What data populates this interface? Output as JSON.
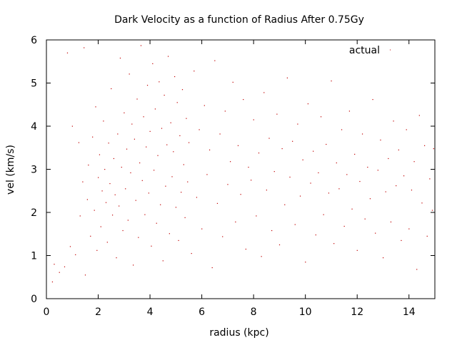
{
  "chart_data": {
    "type": "scatter",
    "title": "Dark Velocity as a function of Radius After 0.75Gy",
    "xlabel": "radius (kpc)",
    "ylabel": "vel (km/s)",
    "xlim": [
      0,
      15
    ],
    "ylim": [
      0,
      6
    ],
    "xticks": [
      "0",
      "2",
      "4",
      "6",
      "8",
      "10",
      "12",
      "14"
    ],
    "yticks": [
      "0",
      "1",
      "2",
      "3",
      "4",
      "5",
      "6"
    ],
    "grid": false,
    "legend_position": "top-right",
    "colors": {
      "series": "#c00000",
      "axis": "#000000"
    },
    "series": [
      {
        "name": "actual",
        "points": [
          [
            0.23,
            0.39
          ],
          [
            0.3,
            0.8
          ],
          [
            0.5,
            0.61
          ],
          [
            0.7,
            0.74
          ],
          [
            0.81,
            5.7
          ],
          [
            0.92,
            1.21
          ],
          [
            1.0,
            4.0
          ],
          [
            1.12,
            1.02
          ],
          [
            1.25,
            3.62
          ],
          [
            1.3,
            1.92
          ],
          [
            1.4,
            2.71
          ],
          [
            1.45,
            5.82
          ],
          [
            1.5,
            0.55
          ],
          [
            1.58,
            2.3
          ],
          [
            1.62,
            3.1
          ],
          [
            1.7,
            1.45
          ],
          [
            1.78,
            3.75
          ],
          [
            1.85,
            2.05
          ],
          [
            1.9,
            4.45
          ],
          [
            1.95,
            1.12
          ],
          [
            2.0,
            2.81
          ],
          [
            2.05,
            3.34
          ],
          [
            2.1,
            1.67
          ],
          [
            2.15,
            2.5
          ],
          [
            2.2,
            4.12
          ],
          [
            2.25,
            3.0
          ],
          [
            2.3,
            2.23
          ],
          [
            2.35,
            1.31
          ],
          [
            2.4,
            3.61
          ],
          [
            2.45,
            2.67
          ],
          [
            2.5,
            4.87
          ],
          [
            2.55,
            1.94
          ],
          [
            2.6,
            3.25
          ],
          [
            2.65,
            2.41
          ],
          [
            2.7,
            0.95
          ],
          [
            2.75,
            3.82
          ],
          [
            2.8,
            2.15
          ],
          [
            2.85,
            5.58
          ],
          [
            2.9,
            3.05
          ],
          [
            2.95,
            1.58
          ],
          [
            3.0,
            4.31
          ],
          [
            3.05,
            2.55
          ],
          [
            3.1,
            3.47
          ],
          [
            3.15,
            1.82
          ],
          [
            3.2,
            5.21
          ],
          [
            3.25,
            2.92
          ],
          [
            3.3,
            4.05
          ],
          [
            3.35,
            0.78
          ],
          [
            3.4,
            3.7
          ],
          [
            3.45,
            2.28
          ],
          [
            3.5,
            4.63
          ],
          [
            3.55,
            1.42
          ],
          [
            3.6,
            3.15
          ],
          [
            3.65,
            5.87
          ],
          [
            3.7,
            2.74
          ],
          [
            3.75,
            4.22
          ],
          [
            3.8,
            1.95
          ],
          [
            3.85,
            3.52
          ],
          [
            3.9,
            4.95
          ],
          [
            3.95,
            2.45
          ],
          [
            4.0,
            3.88
          ],
          [
            4.05,
            1.22
          ],
          [
            4.1,
            5.45
          ],
          [
            4.15,
            2.98
          ],
          [
            4.2,
            4.4
          ],
          [
            4.25,
            1.75
          ],
          [
            4.3,
            3.32
          ],
          [
            4.35,
            5.03
          ],
          [
            4.4,
            2.18
          ],
          [
            4.45,
            3.95
          ],
          [
            4.5,
            0.88
          ],
          [
            4.55,
            4.72
          ],
          [
            4.6,
            2.61
          ],
          [
            4.65,
            3.57
          ],
          [
            4.7,
            5.62
          ],
          [
            4.75,
            1.51
          ],
          [
            4.8,
            4.08
          ],
          [
            4.85,
            2.83
          ],
          [
            4.9,
            3.41
          ],
          [
            4.95,
            5.15
          ],
          [
            5.0,
            2.12
          ],
          [
            5.05,
            4.55
          ],
          [
            5.1,
            1.35
          ],
          [
            5.15,
            3.78
          ],
          [
            5.2,
            2.47
          ],
          [
            5.25,
            4.85
          ],
          [
            5.3,
            3.11
          ],
          [
            5.35,
            1.88
          ],
          [
            5.4,
            4.18
          ],
          [
            5.45,
            2.71
          ],
          [
            5.5,
            3.62
          ],
          [
            5.6,
            1.05
          ],
          [
            5.7,
            5.28
          ],
          [
            5.8,
            2.35
          ],
          [
            5.9,
            3.92
          ],
          [
            6.0,
            1.62
          ],
          [
            6.1,
            4.48
          ],
          [
            6.2,
            2.88
          ],
          [
            6.3,
            3.45
          ],
          [
            6.4,
            0.72
          ],
          [
            6.5,
            5.52
          ],
          [
            6.6,
            2.21
          ],
          [
            6.7,
            3.82
          ],
          [
            6.8,
            1.44
          ],
          [
            6.9,
            4.35
          ],
          [
            7.0,
            2.65
          ],
          [
            7.1,
            3.18
          ],
          [
            7.2,
            5.02
          ],
          [
            7.3,
            1.78
          ],
          [
            7.4,
            3.55
          ],
          [
            7.5,
            2.42
          ],
          [
            7.6,
            4.62
          ],
          [
            7.7,
            1.15
          ],
          [
            7.8,
            3.05
          ],
          [
            7.9,
            2.75
          ],
          [
            8.0,
            4.15
          ],
          [
            8.1,
            1.92
          ],
          [
            8.2,
            3.38
          ],
          [
            8.3,
            0.98
          ],
          [
            8.4,
            4.78
          ],
          [
            8.5,
            2.52
          ],
          [
            8.6,
            3.72
          ],
          [
            8.7,
            1.58
          ],
          [
            8.8,
            2.95
          ],
          [
            8.9,
            4.28
          ],
          [
            9.0,
            1.25
          ],
          [
            9.1,
            3.48
          ],
          [
            9.2,
            2.18
          ],
          [
            9.3,
            5.12
          ],
          [
            9.4,
            2.82
          ],
          [
            9.5,
            3.65
          ],
          [
            9.6,
            1.72
          ],
          [
            9.7,
            4.05
          ],
          [
            9.8,
            2.38
          ],
          [
            9.9,
            3.22
          ],
          [
            10.0,
            0.85
          ],
          [
            10.1,
            4.52
          ],
          [
            10.2,
            2.68
          ],
          [
            10.3,
            3.42
          ],
          [
            10.4,
            1.48
          ],
          [
            10.5,
            2.92
          ],
          [
            10.6,
            4.22
          ],
          [
            10.7,
            1.95
          ],
          [
            10.8,
            3.58
          ],
          [
            10.9,
            2.45
          ],
          [
            11.0,
            5.05
          ],
          [
            11.1,
            1.28
          ],
          [
            11.2,
            3.15
          ],
          [
            11.3,
            2.55
          ],
          [
            11.4,
            3.92
          ],
          [
            11.5,
            1.68
          ],
          [
            11.6,
            2.88
          ],
          [
            11.7,
            4.35
          ],
          [
            11.8,
            2.08
          ],
          [
            11.9,
            3.35
          ],
          [
            12.0,
            1.12
          ],
          [
            12.1,
            2.72
          ],
          [
            12.2,
            3.82
          ],
          [
            12.3,
            1.85
          ],
          [
            12.4,
            3.05
          ],
          [
            12.5,
            2.32
          ],
          [
            12.6,
            4.62
          ],
          [
            12.7,
            1.52
          ],
          [
            12.8,
            2.98
          ],
          [
            12.9,
            3.68
          ],
          [
            13.0,
            0.95
          ],
          [
            13.1,
            2.48
          ],
          [
            13.2,
            3.25
          ],
          [
            13.3,
            1.78
          ],
          [
            13.4,
            4.12
          ],
          [
            13.5,
            2.62
          ],
          [
            13.6,
            3.45
          ],
          [
            13.7,
            1.35
          ],
          [
            13.8,
            2.85
          ],
          [
            13.9,
            3.92
          ],
          [
            14.0,
            1.62
          ],
          [
            14.1,
            2.52
          ],
          [
            14.2,
            3.18
          ],
          [
            14.3,
            0.68
          ],
          [
            14.4,
            4.25
          ],
          [
            14.5,
            2.22
          ],
          [
            14.6,
            3.55
          ],
          [
            14.7,
            1.45
          ],
          [
            14.8,
            2.78
          ],
          [
            14.9,
            2.05
          ],
          [
            14.95,
            3.48
          ]
        ]
      }
    ]
  }
}
